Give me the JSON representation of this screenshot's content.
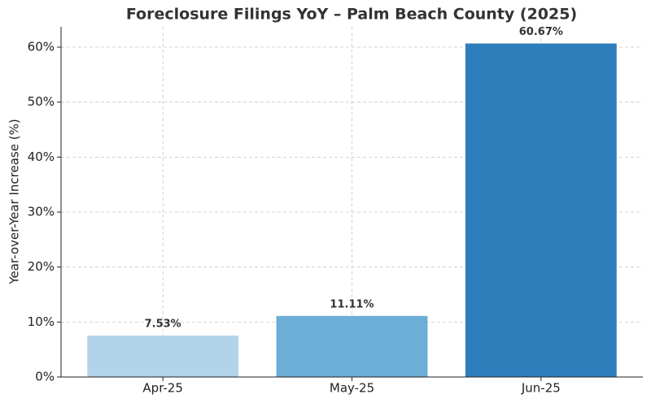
{
  "chart_data": {
    "type": "bar",
    "title": "Foreclosure Filings YoY – Palm Beach County (2025)",
    "y_label": "Year-over-Year Increase (%)",
    "categories": [
      "Apr-25",
      "May-25",
      "Jun-25"
    ],
    "values": [
      7.53,
      11.11,
      60.67
    ],
    "value_labels": [
      "7.53%",
      "11.11%",
      "60.67%"
    ],
    "colors": [
      "#b3d3ea",
      "#6baed6",
      "#2f7ebc"
    ],
    "ylim": [
      0,
      63.7
    ],
    "yticks": [
      {
        "value": 0,
        "label": "0%"
      },
      {
        "value": 10,
        "label": "10%"
      },
      {
        "value": 20,
        "label": "20%"
      },
      {
        "value": 30,
        "label": "30%"
      },
      {
        "value": 40,
        "label": "40%"
      },
      {
        "value": 50,
        "label": "50%"
      },
      {
        "value": 60,
        "label": "60%"
      }
    ],
    "grid": true
  }
}
